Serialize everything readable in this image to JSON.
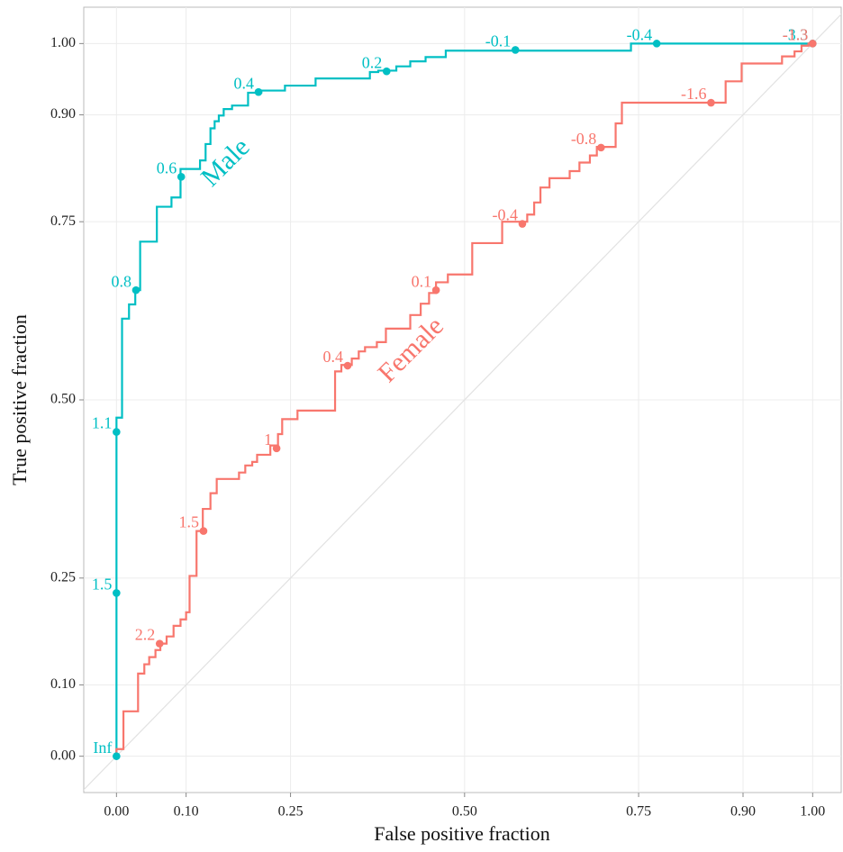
{
  "chart_data": {
    "type": "roc-step",
    "x_label": "False positive fraction",
    "y_label": "True positive fraction",
    "xlim": [
      -0.047,
      1.041
    ],
    "ylim": [
      -0.051,
      1.051
    ],
    "xticks": [
      {
        "value": 0,
        "label": "0.00"
      },
      {
        "value": 0.1,
        "label": "0.10"
      },
      {
        "value": 0.25,
        "label": "0.25"
      },
      {
        "value": 0.5,
        "label": "0.50"
      },
      {
        "value": 0.75,
        "label": "0.75"
      },
      {
        "value": 0.9,
        "label": "0.90"
      },
      {
        "value": 1,
        "label": "1.00"
      }
    ],
    "yticks": [
      {
        "value": 0,
        "label": "0.00"
      },
      {
        "value": 0.1,
        "label": "0.10"
      },
      {
        "value": 0.25,
        "label": "0.25"
      },
      {
        "value": 0.5,
        "label": "0.50"
      },
      {
        "value": 0.75,
        "label": "0.75"
      },
      {
        "value": 0.9,
        "label": "0.90"
      },
      {
        "value": 1,
        "label": "1.00"
      }
    ],
    "grid": true,
    "diagonal": true,
    "series": [
      {
        "name": "Male",
        "color": "#00BFC4",
        "x": [
          0,
          0,
          0.008,
          0.008,
          0.018,
          0.018,
          0.027,
          0.027,
          0.034,
          0.034,
          0.058,
          0.058,
          0.079,
          0.079,
          0.092,
          0.092,
          0.12,
          0.12,
          0.128,
          0.128,
          0.135,
          0.135,
          0.141,
          0.141,
          0.147,
          0.147,
          0.154,
          0.154,
          0.166,
          0.166,
          0.189,
          0.189,
          0.208,
          0.208,
          0.242,
          0.242,
          0.286,
          0.286,
          0.364,
          0.364,
          0.376,
          0.376,
          0.402,
          0.402,
          0.422,
          0.422,
          0.444,
          0.444,
          0.473,
          0.473,
          0.739,
          0.739,
          1
        ],
        "y": [
          0,
          0.475,
          0.475,
          0.614,
          0.614,
          0.634,
          0.634,
          0.654,
          0.654,
          0.722,
          0.722,
          0.771,
          0.771,
          0.784,
          0.784,
          0.824,
          0.824,
          0.836,
          0.836,
          0.859,
          0.859,
          0.881,
          0.881,
          0.891,
          0.891,
          0.899,
          0.899,
          0.908,
          0.908,
          0.913,
          0.913,
          0.931,
          0.931,
          0.934,
          0.934,
          0.941,
          0.941,
          0.951,
          0.951,
          0.96,
          0.96,
          0.962,
          0.962,
          0.968,
          0.968,
          0.975,
          0.975,
          0.981,
          0.981,
          0.99,
          0.99,
          1,
          1
        ],
        "cutoffs": {
          "x": [
            0,
            0,
            0,
            0.028,
            0.093,
            0.204,
            0.388,
            0.573,
            0.776,
            1
          ],
          "y": [
            0,
            0.229,
            0.455,
            0.654,
            0.813,
            0.932,
            0.961,
            0.991,
            1,
            1
          ],
          "labels": [
            "Inf",
            "1.5",
            "1.1",
            "0.8",
            "0.6",
            "0.4",
            "0.2",
            "-0.1",
            "-0.4",
            "-3.3"
          ]
        }
      },
      {
        "name": "Female",
        "color": "#F8766D",
        "x": [
          0,
          0,
          0.01,
          0.01,
          0.031,
          0.031,
          0.04,
          0.04,
          0.047,
          0.047,
          0.056,
          0.056,
          0.063,
          0.063,
          0.072,
          0.072,
          0.082,
          0.082,
          0.092,
          0.092,
          0.1,
          0.1,
          0.105,
          0.105,
          0.115,
          0.115,
          0.124,
          0.124,
          0.135,
          0.135,
          0.144,
          0.144,
          0.176,
          0.176,
          0.185,
          0.185,
          0.195,
          0.195,
          0.202,
          0.202,
          0.221,
          0.221,
          0.232,
          0.232,
          0.238,
          0.238,
          0.26,
          0.26,
          0.314,
          0.314,
          0.323,
          0.323,
          0.338,
          0.338,
          0.348,
          0.348,
          0.357,
          0.357,
          0.374,
          0.374,
          0.387,
          0.387,
          0.422,
          0.422,
          0.437,
          0.437,
          0.449,
          0.449,
          0.459,
          0.459,
          0.476,
          0.476,
          0.511,
          0.511,
          0.554,
          0.554,
          0.59,
          0.59,
          0.6,
          0.6,
          0.609,
          0.609,
          0.622,
          0.622,
          0.651,
          0.651,
          0.665,
          0.665,
          0.68,
          0.68,
          0.69,
          0.69,
          0.717,
          0.717,
          0.726,
          0.726,
          0.875,
          0.875,
          0.898,
          0.898,
          0.956,
          0.956,
          0.974,
          0.974,
          0.984,
          0.984,
          0.994,
          0.994,
          1
        ],
        "y": [
          0,
          0.01,
          0.01,
          0.063,
          0.063,
          0.116,
          0.116,
          0.129,
          0.129,
          0.139,
          0.139,
          0.149,
          0.149,
          0.158,
          0.158,
          0.168,
          0.168,
          0.183,
          0.183,
          0.192,
          0.192,
          0.202,
          0.202,
          0.253,
          0.253,
          0.316,
          0.316,
          0.347,
          0.347,
          0.369,
          0.369,
          0.389,
          0.389,
          0.398,
          0.398,
          0.408,
          0.408,
          0.413,
          0.413,
          0.423,
          0.423,
          0.436,
          0.436,
          0.452,
          0.452,
          0.473,
          0.473,
          0.485,
          0.485,
          0.54,
          0.54,
          0.549,
          0.549,
          0.558,
          0.558,
          0.568,
          0.568,
          0.574,
          0.574,
          0.581,
          0.581,
          0.6,
          0.6,
          0.619,
          0.619,
          0.635,
          0.635,
          0.65,
          0.65,
          0.665,
          0.665,
          0.676,
          0.676,
          0.72,
          0.72,
          0.75,
          0.75,
          0.76,
          0.76,
          0.777,
          0.777,
          0.798,
          0.798,
          0.811,
          0.811,
          0.821,
          0.821,
          0.833,
          0.833,
          0.843,
          0.843,
          0.855,
          0.855,
          0.888,
          0.888,
          0.917,
          0.917,
          0.947,
          0.947,
          0.972,
          0.972,
          0.982,
          0.982,
          0.989,
          0.989,
          0.997,
          0.997,
          1,
          1
        ],
        "cutoffs": {
          "x": [
            0.062,
            0.125,
            0.23,
            0.332,
            0.459,
            0.583,
            0.696,
            0.854,
            1
          ],
          "y": [
            0.158,
            0.316,
            0.432,
            0.548,
            0.654,
            0.747,
            0.854,
            0.917,
            1
          ],
          "labels": [
            "2.2",
            "1.5",
            "1",
            "0.4",
            "0.1",
            "-0.4",
            "-0.8",
            "-1.6",
            "-1.3"
          ]
        }
      }
    ]
  }
}
